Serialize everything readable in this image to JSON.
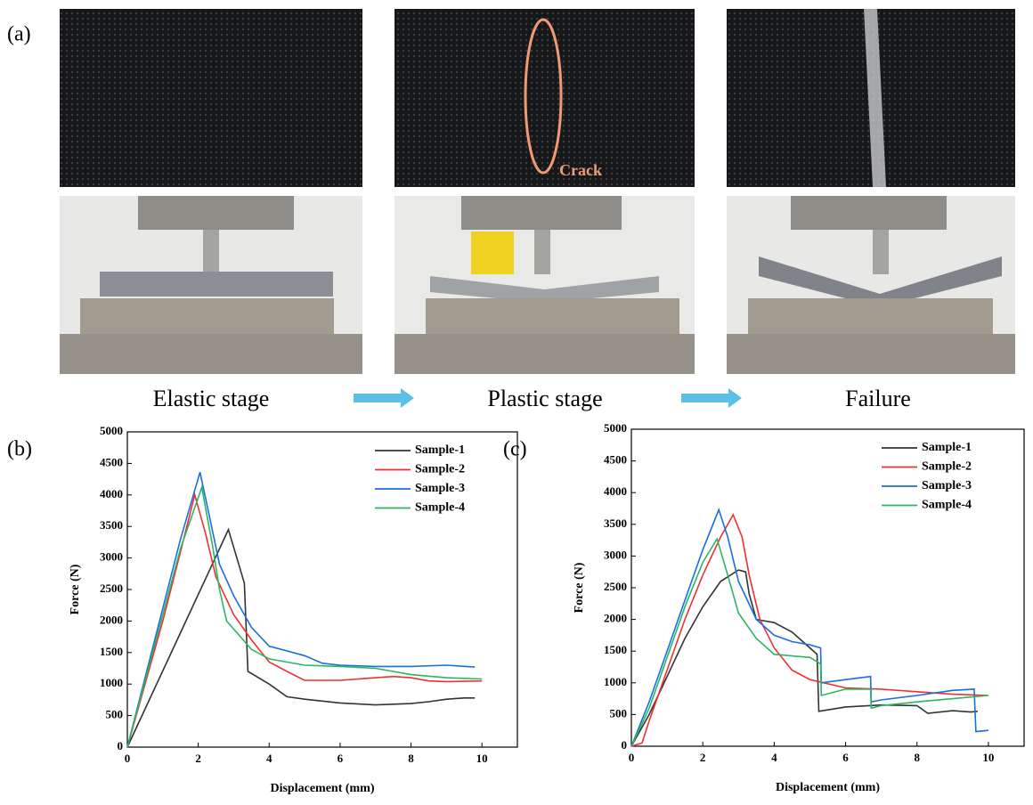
{
  "figure": {
    "panel_labels": [
      "(a)",
      "(b)",
      "(c)"
    ],
    "annotation": "Crack",
    "stages": [
      "Elastic stage",
      "Plastic stage",
      "Failure"
    ]
  },
  "chart_data": [
    {
      "type": "line",
      "xlabel": "Displacement (mm)",
      "ylabel": "Force (N)",
      "xlim": [
        0,
        11
      ],
      "ylim": [
        0,
        5000
      ],
      "xticks": [
        0,
        2,
        4,
        6,
        8,
        10
      ],
      "yticks": [
        0,
        500,
        1000,
        1500,
        2000,
        2500,
        3000,
        3500,
        4000,
        4500,
        5000
      ],
      "legend": "upper right",
      "series": [
        {
          "name": "Sample-1",
          "color": "#333333",
          "x": [
            0,
            2.85,
            3.3,
            3.4,
            4,
            4.5,
            5,
            6,
            7,
            8,
            8.5,
            9,
            9.5,
            9.8
          ],
          "values": [
            0,
            3450,
            2600,
            1200,
            1000,
            800,
            760,
            700,
            670,
            690,
            720,
            760,
            780,
            780
          ]
        },
        {
          "name": "Sample-2",
          "color": "#f03030",
          "x": [
            0,
            0.5,
            1,
            1.5,
            1.9,
            2.2,
            2.5,
            3,
            3.5,
            4,
            4.5,
            5,
            6,
            7,
            7.5,
            8,
            8.5,
            9,
            10
          ],
          "values": [
            0,
            1000,
            2000,
            3100,
            4000,
            3400,
            2700,
            2100,
            1700,
            1350,
            1200,
            1060,
            1060,
            1100,
            1120,
            1100,
            1050,
            1040,
            1050
          ]
        },
        {
          "name": "Sample-3",
          "color": "#1a6fe0",
          "x": [
            0,
            0.5,
            1,
            1.5,
            2.05,
            2.3,
            2.6,
            3,
            3.5,
            4,
            5,
            5.5,
            6,
            7,
            8,
            9,
            9.8
          ],
          "values": [
            0,
            1100,
            2200,
            3300,
            4360,
            3700,
            2900,
            2400,
            1900,
            1600,
            1450,
            1330,
            1300,
            1280,
            1280,
            1300,
            1270
          ]
        },
        {
          "name": "Sample-4",
          "color": "#2db560",
          "x": [
            0,
            0.5,
            1,
            1.5,
            2.1,
            2.4,
            2.6,
            2.8,
            3.5,
            4,
            5,
            6,
            7,
            8,
            9,
            10
          ],
          "values": [
            0,
            1050,
            2100,
            3150,
            4120,
            3200,
            2500,
            2000,
            1550,
            1400,
            1300,
            1280,
            1250,
            1150,
            1100,
            1080
          ]
        }
      ]
    },
    {
      "type": "line",
      "xlabel": "Displacement (mm)",
      "ylabel": "Force (N)",
      "xlim": [
        0,
        11
      ],
      "ylim": [
        0,
        5000
      ],
      "xticks": [
        0,
        2,
        4,
        6,
        8,
        10
      ],
      "yticks": [
        0,
        500,
        1000,
        1500,
        2000,
        2500,
        3000,
        3500,
        4000,
        4500,
        5000
      ],
      "legend": "upper right",
      "series": [
        {
          "name": "Sample-1",
          "color": "#333333",
          "x": [
            0,
            0.5,
            1,
            1.5,
            2,
            2.5,
            3,
            3.2,
            3.3,
            3.5,
            4,
            4.5,
            5,
            5.2,
            5.25,
            6,
            7,
            8,
            8.3,
            9,
            9.5,
            9.7
          ],
          "values": [
            0,
            500,
            1100,
            1700,
            2200,
            2600,
            2780,
            2750,
            2400,
            2000,
            1950,
            1800,
            1550,
            1450,
            550,
            620,
            650,
            640,
            520,
            560,
            540,
            550
          ]
        },
        {
          "name": "Sample-2",
          "color": "#f03030",
          "x": [
            0,
            0.3,
            0.5,
            1,
            1.5,
            2,
            2.5,
            2.85,
            3.1,
            3.3,
            3.6,
            4,
            4.5,
            5,
            6,
            7,
            8,
            9,
            10
          ],
          "values": [
            0,
            50,
            400,
            1200,
            2000,
            2700,
            3300,
            3650,
            3300,
            2700,
            2000,
            1550,
            1200,
            1050,
            920,
            900,
            860,
            820,
            800
          ]
        },
        {
          "name": "Sample-3",
          "color": "#1a6fe0",
          "x": [
            0,
            0.5,
            1,
            1.5,
            2,
            2.45,
            2.7,
            3,
            3.5,
            4,
            4.5,
            5,
            5.3,
            5.32,
            6,
            6.7,
            6.72,
            7,
            8,
            9,
            9.6,
            9.65,
            10
          ],
          "values": [
            0,
            700,
            1500,
            2300,
            3100,
            3730,
            3300,
            2600,
            2000,
            1750,
            1650,
            1600,
            1550,
            1000,
            1050,
            1100,
            700,
            730,
            800,
            880,
            900,
            230,
            250
          ]
        },
        {
          "name": "Sample-4",
          "color": "#2db560",
          "x": [
            0,
            0.5,
            1,
            1.5,
            2,
            2.4,
            2.7,
            3,
            3.5,
            4,
            5,
            5.3,
            5.32,
            6,
            6.7,
            6.72,
            7,
            8,
            9,
            10
          ],
          "values": [
            0,
            600,
            1400,
            2200,
            2900,
            3270,
            2700,
            2100,
            1700,
            1450,
            1400,
            1300,
            800,
            900,
            900,
            600,
            640,
            700,
            750,
            800
          ]
        }
      ]
    }
  ]
}
